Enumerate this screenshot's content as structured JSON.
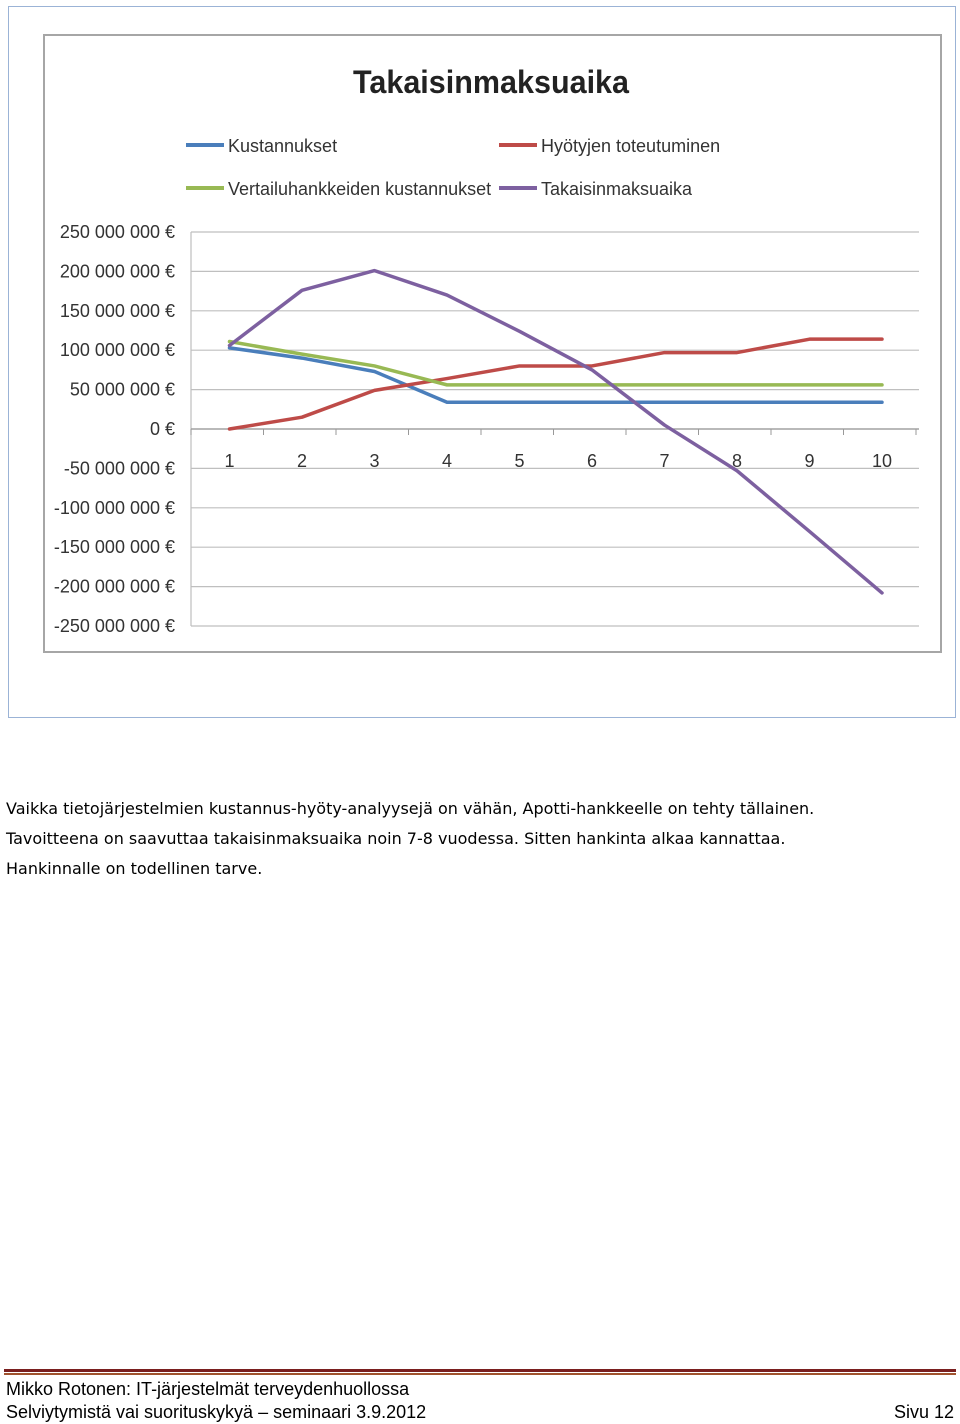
{
  "chart_data": {
    "type": "line",
    "title": "Takaisinmaksuaika",
    "categories": [
      "1",
      "2",
      "3",
      "4",
      "5",
      "6",
      "7",
      "8",
      "9",
      "10"
    ],
    "y_ticks": [
      "250 000 000 €",
      "200 000 000 €",
      "150 000 000 €",
      "100 000 000 €",
      "50 000 000 €",
      "0 €",
      "-50 000 000 €",
      "-100 000 000 €",
      "-150 000 000 €",
      "-200 000 000 €",
      "-250 000 000 €"
    ],
    "ylim": [
      -250000000,
      250000000
    ],
    "grid": true,
    "legend_position": "top",
    "series": [
      {
        "name": "Kustannukset",
        "color": "#4a7ebb",
        "values": [
          103000000,
          90000000,
          73000000,
          34000000,
          34000000,
          34000000,
          34000000,
          34000000,
          34000000,
          34000000
        ]
      },
      {
        "name": "Hyötyjen toteutuminen",
        "color": "#be4b48",
        "values": [
          0,
          15000000,
          49000000,
          64000000,
          80000000,
          80000000,
          97000000,
          97000000,
          114000000,
          114000000
        ]
      },
      {
        "name": "Vertailuhankkeiden kustannukset",
        "color": "#98b954",
        "values": [
          111000000,
          95000000,
          80000000,
          56000000,
          56000000,
          56000000,
          56000000,
          56000000,
          56000000,
          56000000
        ]
      },
      {
        "name": "Takaisinmaksuaika",
        "color": "#7d60a0",
        "values": [
          106000000,
          176000000,
          201000000,
          170000000,
          124000000,
          75000000,
          5000000,
          -53000000,
          -130000000,
          -208000000
        ]
      }
    ]
  },
  "body": {
    "line1": "Vaikka tietojärjestelmien kustannus-hyöty-analyysejä on vähän, Apotti-hankkeelle on tehty tällainen.",
    "line2": "Tavoitteena on saavuttaa takaisinmaksuaika noin 7-8 vuodessa. Sitten hankinta alkaa kannattaa.",
    "line3": "Hankinnalle on todellinen tarve."
  },
  "footer": {
    "line1": "Mikko Rotonen: IT-järjestelmät terveydenhuollossa",
    "line2": "Selviytymistä vai suorituskykyä – seminaari 3.9.2012",
    "page": "Sivu 12"
  }
}
